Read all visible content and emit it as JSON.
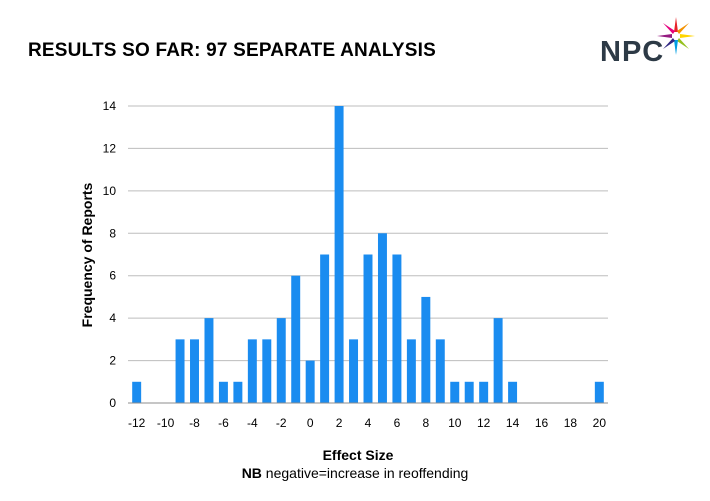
{
  "header": {
    "title": "RESULTS SO FAR: 97 SEPARATE ANALYSIS",
    "logo_text": "NPC"
  },
  "colors": {
    "bar": "#1a8cf0",
    "grid": "#bdbdbd",
    "axis": "#8c8c8c",
    "logo_text": "#2d3a46"
  },
  "chart_data": {
    "type": "bar",
    "title": "",
    "xlabel": "Effect Size",
    "ylabel": "Frequency of Reports",
    "ylim": [
      0,
      14
    ],
    "yticks": [
      0,
      2,
      4,
      6,
      8,
      10,
      12,
      14
    ],
    "xticks": [
      -12,
      -10,
      -8,
      -6,
      -4,
      -2,
      0,
      2,
      4,
      6,
      8,
      10,
      12,
      14,
      16,
      18,
      20
    ],
    "grid": true,
    "categories": [
      -12,
      -11,
      -10,
      -9,
      -8,
      -7,
      -6,
      -5,
      -4,
      -3,
      -2,
      -1,
      0,
      1,
      2,
      3,
      4,
      5,
      6,
      7,
      8,
      9,
      10,
      11,
      12,
      13,
      14,
      15,
      16,
      17,
      18,
      19,
      20
    ],
    "values": [
      1,
      0,
      0,
      3,
      3,
      4,
      1,
      1,
      3,
      3,
      4,
      6,
      2,
      7,
      14,
      3,
      7,
      8,
      7,
      3,
      5,
      3,
      1,
      1,
      1,
      4,
      1,
      0,
      0,
      0,
      0,
      0,
      1
    ]
  },
  "note": {
    "bold": "NB",
    "text": " negative=increase in reoffending"
  }
}
